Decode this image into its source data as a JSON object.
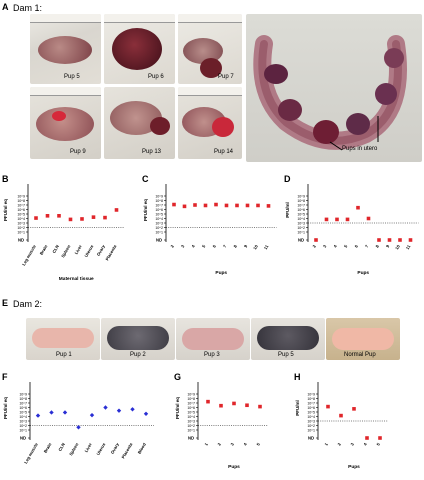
{
  "panels": {
    "A": {
      "letter": "A",
      "title": "Dam 1:",
      "photos": [
        {
          "label": "Pup 5"
        },
        {
          "label": "Pup 6"
        },
        {
          "label": "Pup 7"
        },
        {
          "label": "Pup 9"
        },
        {
          "label": "Pup 13"
        },
        {
          "label": "Pup 14"
        }
      ],
      "utero_label": "Pups in utero"
    },
    "E": {
      "letter": "E",
      "title": "Dam 2:",
      "photos": [
        {
          "label": "Pup 1"
        },
        {
          "label": "Pup 2"
        },
        {
          "label": "Pup 3"
        },
        {
          "label": "Pup 5"
        },
        {
          "label": "Normal Pup"
        }
      ]
    }
  },
  "colors": {
    "red": "#e0262b",
    "blue": "#2a2fd4",
    "tissue": "#c07b78",
    "dark_tissue": "#6e2a33",
    "pale_pup": "#e8b4a8"
  },
  "chart_data": [
    {
      "letter": "B",
      "type": "scatter",
      "ylabel": "PFU/ml eq",
      "xlabel": "Maternal tissue",
      "nd_label": "ND",
      "yticks": [
        "10^9",
        "10^8",
        "10^7",
        "10^6",
        "10^5",
        "10^4",
        "10^3",
        "10^2",
        "10^1"
      ],
      "categories": [
        "Leg muscle",
        "Brain",
        "CLN",
        "Spleen",
        "Liver",
        "Uterus",
        "Ovary",
        "Placenta"
      ],
      "values": [
        4.1,
        4.6,
        4.6,
        3.8,
        3.9,
        4.3,
        4.2,
        5.9
      ],
      "color": "#e0262b",
      "marker": "square"
    },
    {
      "letter": "C",
      "type": "scatter",
      "ylabel": "PFU/ml eq",
      "xlabel": "Pups",
      "nd_label": "ND",
      "yticks": [
        "10^9",
        "10^8",
        "10^7",
        "10^6",
        "10^5",
        "10^4",
        "10^3",
        "10^2",
        "10^1"
      ],
      "categories": [
        "2",
        "3",
        "4",
        "5",
        "6",
        "7",
        "8",
        "9",
        "10",
        "11"
      ],
      "values": [
        7.1,
        6.7,
        7.0,
        6.9,
        7.1,
        6.9,
        6.9,
        6.9,
        6.9,
        6.8
      ],
      "color": "#e0262b",
      "marker": "square"
    },
    {
      "letter": "D",
      "type": "scatter",
      "ylabel": "PFU/ml",
      "xlabel": "Pups",
      "nd_label": "ND",
      "yticks": [
        "10^9",
        "10^8",
        "10^7",
        "10^6",
        "10^5",
        "10^4",
        "10^3",
        "10^2",
        "10^1"
      ],
      "categories": [
        "2",
        "3",
        "4",
        "5",
        "6",
        "7",
        "8",
        "9",
        "10",
        "11"
      ],
      "values": [
        0,
        3.8,
        3.8,
        3.8,
        6.4,
        4.0,
        0,
        0,
        0,
        0
      ],
      "color": "#e0262b",
      "marker": "square"
    },
    {
      "letter": "F",
      "type": "scatter",
      "ylabel": "PFU/ml eq",
      "xlabel": "",
      "nd_label": "ND",
      "yticks": [
        "10^9",
        "10^8",
        "10^7",
        "10^6",
        "10^5",
        "10^4",
        "10^3",
        "10^2",
        "10^1"
      ],
      "categories": [
        "Leg muscle",
        "Brain",
        "CLN",
        "Spleen",
        "Liver",
        "Uterus",
        "Ovary",
        "Placenta",
        "Blood"
      ],
      "values": [
        4.2,
        4.9,
        4.9,
        1.6,
        4.3,
        6.0,
        5.3,
        5.6,
        4.6
      ],
      "color": "#2a2fd4",
      "marker": "diamond"
    },
    {
      "letter": "G",
      "type": "scatter",
      "ylabel": "PFU/ml eq",
      "xlabel": "Pups",
      "nd_label": "ND",
      "yticks": [
        "10^9",
        "10^8",
        "10^7",
        "10^6",
        "10^5",
        "10^4",
        "10^3",
        "10^2",
        "10^1"
      ],
      "categories": [
        "1",
        "2",
        "3",
        "4",
        "5"
      ],
      "values": [
        7.3,
        6.4,
        6.9,
        6.5,
        6.2
      ],
      "color": "#e0262b",
      "marker": "square"
    },
    {
      "letter": "H",
      "type": "scatter",
      "ylabel": "PFU/ml",
      "xlabel": "Pups",
      "nd_label": "ND",
      "yticks": [
        "10^9",
        "10^8",
        "10^7",
        "10^6",
        "10^5",
        "10^4",
        "10^3",
        "10^2",
        "10^1"
      ],
      "categories": [
        "1",
        "2",
        "3",
        "4",
        "5"
      ],
      "values": [
        6.2,
        4.2,
        5.7,
        0,
        0
      ],
      "color": "#e0262b",
      "marker": "square"
    }
  ]
}
